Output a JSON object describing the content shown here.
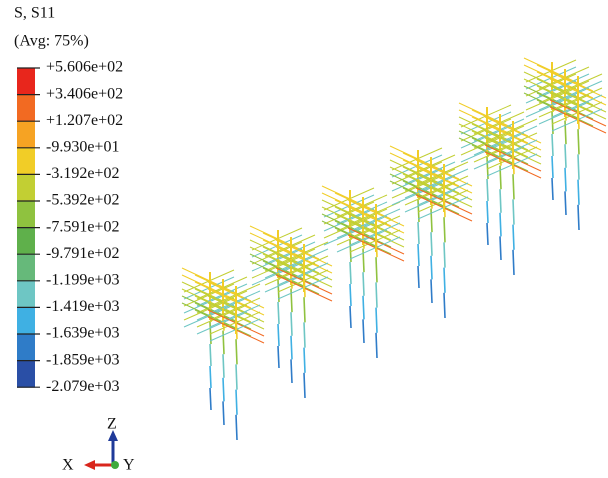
{
  "header": {
    "title": "S, S11",
    "subtitle": "(Avg: 75%)"
  },
  "legend": {
    "labels": [
      "+5.606e+02",
      "+3.406e+02",
      "+1.207e+02",
      "-9.930e+01",
      "-3.192e+02",
      "-5.392e+02",
      "-7.591e+02",
      "-9.791e+02",
      "-1.199e+03",
      "-1.419e+03",
      "-1.639e+03",
      "-1.859e+03",
      "-2.079e+03"
    ],
    "colors": [
      "#e8261c",
      "#f26a22",
      "#f6a323",
      "#f1cd27",
      "#c2cf33",
      "#8fc23f",
      "#5fb04b",
      "#66b97a",
      "#6ec6c4",
      "#3fb0e3",
      "#2f7cc8",
      "#2a4fa6"
    ]
  },
  "triad": {
    "z": "Z",
    "x": "X",
    "y": "Y"
  }
}
